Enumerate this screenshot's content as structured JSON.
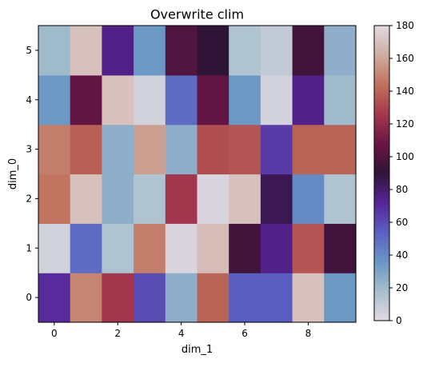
{
  "chart_data": {
    "type": "heatmap",
    "title": "Overwrite clim",
    "xlabel": "dim_1",
    "ylabel": "dim_0",
    "x_ticks": [
      0,
      2,
      4,
      6,
      8
    ],
    "y_ticks": [
      0,
      1,
      2,
      3,
      4,
      5
    ],
    "colormap": "twilight",
    "clim": [
      0,
      180
    ],
    "colorbar_ticks": [
      0,
      20,
      40,
      60,
      80,
      100,
      120,
      140,
      160,
      180
    ],
    "grid": false,
    "rows": [
      {
        "dim_0": 0,
        "values": [
          70,
          150,
          125,
          60,
          25,
          140,
          55,
          55,
          170,
          35
        ]
      },
      {
        "dim_0": 1,
        "values": [
          5,
          50,
          15,
          148,
          3,
          168,
          95,
          75,
          135,
          95
        ]
      },
      {
        "dim_0": 2,
        "values": [
          145,
          170,
          25,
          15,
          125,
          3,
          170,
          85,
          40,
          15
        ]
      },
      {
        "dim_0": 3,
        "values": [
          148,
          138,
          25,
          158,
          25,
          133,
          135,
          65,
          140,
          140
        ]
      },
      {
        "dim_0": 4,
        "values": [
          35,
          105,
          170,
          5,
          50,
          105,
          35,
          5,
          75,
          20
        ]
      },
      {
        "dim_0": 5,
        "values": [
          20,
          170,
          75,
          35,
          100,
          90,
          15,
          10,
          95,
          25
        ]
      }
    ]
  }
}
